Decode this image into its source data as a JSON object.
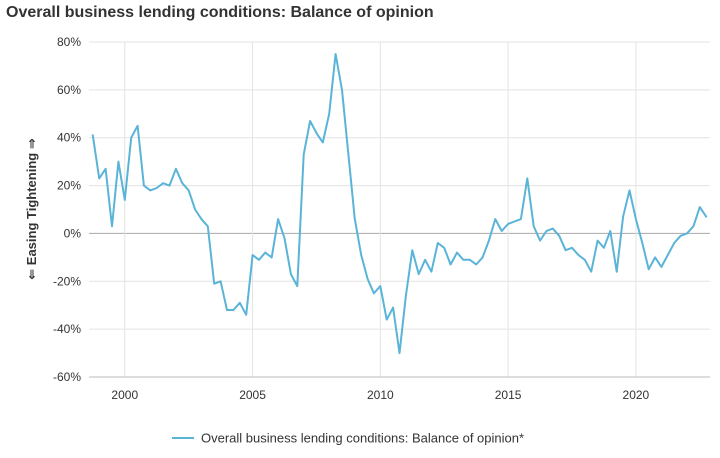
{
  "chart_data": {
    "type": "line",
    "title": "Overall business lending conditions: Balance of opinion",
    "xlabel": "",
    "ylabel": "⇐ Easing Tightening ⇒",
    "xlim": [
      1998.6,
      2022.9
    ],
    "ylim": [
      -60,
      80
    ],
    "x_ticks": [
      2000,
      2005,
      2010,
      2015,
      2020
    ],
    "y_ticks": [
      {
        "value": 80,
        "label": "80%"
      },
      {
        "value": 60,
        "label": "60%"
      },
      {
        "value": 40,
        "label": "40%"
      },
      {
        "value": 20,
        "label": "20%"
      },
      {
        "value": 0,
        "label": "0%"
      },
      {
        "value": -20,
        "label": "-20%"
      },
      {
        "value": -40,
        "label": "-40%"
      },
      {
        "value": -60,
        "label": "-60%"
      }
    ],
    "grid": true,
    "legend_position": "bottom",
    "line_color": "#5ab4d8",
    "series": [
      {
        "name": "Overall business lending conditions: Balance of opinion*",
        "x": [
          1998.75,
          1999.0,
          1999.25,
          1999.5,
          1999.75,
          2000.0,
          2000.25,
          2000.5,
          2000.75,
          2001.0,
          2001.25,
          2001.5,
          2001.75,
          2002.0,
          2002.25,
          2002.5,
          2002.75,
          2003.0,
          2003.25,
          2003.5,
          2003.75,
          2004.0,
          2004.25,
          2004.5,
          2004.75,
          2005.0,
          2005.25,
          2005.5,
          2005.75,
          2006.0,
          2006.25,
          2006.5,
          2006.75,
          2007.0,
          2007.25,
          2007.5,
          2007.75,
          2008.0,
          2008.25,
          2008.5,
          2008.75,
          2009.0,
          2009.25,
          2009.5,
          2009.75,
          2010.0,
          2010.25,
          2010.5,
          2010.75,
          2011.0,
          2011.25,
          2011.5,
          2011.75,
          2012.0,
          2012.25,
          2012.5,
          2012.75,
          2013.0,
          2013.25,
          2013.5,
          2013.75,
          2014.0,
          2014.25,
          2014.5,
          2014.75,
          2015.0,
          2015.25,
          2015.5,
          2015.75,
          2016.0,
          2016.25,
          2016.5,
          2016.75,
          2017.0,
          2017.25,
          2017.5,
          2017.75,
          2018.0,
          2018.25,
          2018.5,
          2018.75,
          2019.0,
          2019.25,
          2019.5,
          2019.75,
          2020.0,
          2020.25,
          2020.5,
          2020.75,
          2021.0,
          2021.25,
          2021.5,
          2021.75,
          2022.0,
          2022.25,
          2022.5,
          2022.75
        ],
        "values": [
          41,
          23,
          27,
          3,
          30,
          14,
          40,
          45,
          20,
          18,
          19,
          21,
          20,
          27,
          21,
          18,
          10,
          6,
          3,
          -21,
          -20,
          -32,
          -32,
          -29,
          -34,
          -9,
          -11,
          -8,
          -10,
          6,
          -2,
          -17,
          -22,
          33,
          47,
          42,
          38,
          50,
          75,
          60,
          33,
          6,
          -9,
          -19,
          -25,
          -22,
          -36,
          -31,
          -50,
          -26,
          -7,
          -17,
          -11,
          -16,
          -4,
          -6,
          -13,
          -8,
          -11,
          -11,
          -13,
          -10,
          -3,
          6,
          1,
          4,
          5,
          6,
          23,
          3,
          -3,
          1,
          2,
          -1,
          -7,
          -6,
          -9,
          -11,
          -16,
          -3,
          -6,
          1,
          -16,
          7,
          18,
          6,
          -4,
          -15,
          -10,
          -14,
          -9,
          -4,
          -1,
          0,
          3,
          11,
          7
        ]
      }
    ]
  }
}
